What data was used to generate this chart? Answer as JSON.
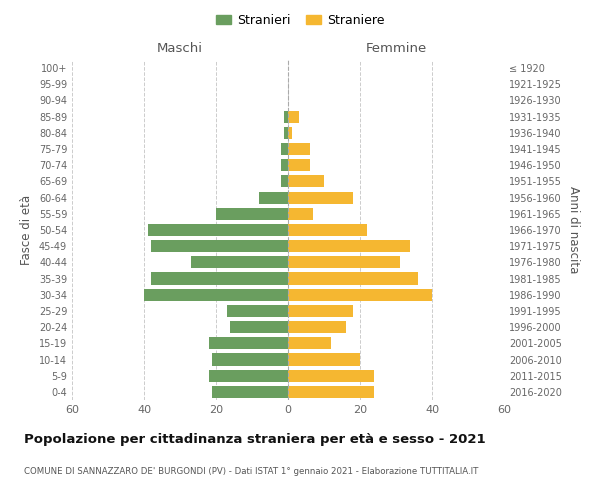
{
  "age_groups": [
    "0-4",
    "5-9",
    "10-14",
    "15-19",
    "20-24",
    "25-29",
    "30-34",
    "35-39",
    "40-44",
    "45-49",
    "50-54",
    "55-59",
    "60-64",
    "65-69",
    "70-74",
    "75-79",
    "80-84",
    "85-89",
    "90-94",
    "95-99",
    "100+"
  ],
  "birth_years": [
    "2016-2020",
    "2011-2015",
    "2006-2010",
    "2001-2005",
    "1996-2000",
    "1991-1995",
    "1986-1990",
    "1981-1985",
    "1976-1980",
    "1971-1975",
    "1966-1970",
    "1961-1965",
    "1956-1960",
    "1951-1955",
    "1946-1950",
    "1941-1945",
    "1936-1940",
    "1931-1935",
    "1926-1930",
    "1921-1925",
    "≤ 1920"
  ],
  "maschi": [
    21,
    22,
    21,
    22,
    16,
    17,
    40,
    38,
    27,
    38,
    39,
    20,
    8,
    2,
    2,
    2,
    1,
    1,
    0,
    0,
    0
  ],
  "femmine": [
    24,
    24,
    20,
    12,
    16,
    18,
    40,
    36,
    31,
    34,
    22,
    7,
    18,
    10,
    6,
    6,
    1,
    3,
    0,
    0,
    0
  ],
  "color_maschi": "#6a9e5f",
  "color_femmine": "#f5b731",
  "title": "Popolazione per cittadinanza straniera per età e sesso - 2021",
  "subtitle": "COMUNE DI SANNAZZARO DE' BURGONDI (PV) - Dati ISTAT 1° gennaio 2021 - Elaborazione TUTTITALIA.IT",
  "ylabel_left": "Fasce di età",
  "ylabel_right": "Anni di nascita",
  "xlabel_left": "Maschi",
  "xlabel_right": "Femmine",
  "legend_maschi": "Stranieri",
  "legend_femmine": "Straniere",
  "xlim": 60,
  "background_color": "#ffffff",
  "grid_color": "#cccccc"
}
